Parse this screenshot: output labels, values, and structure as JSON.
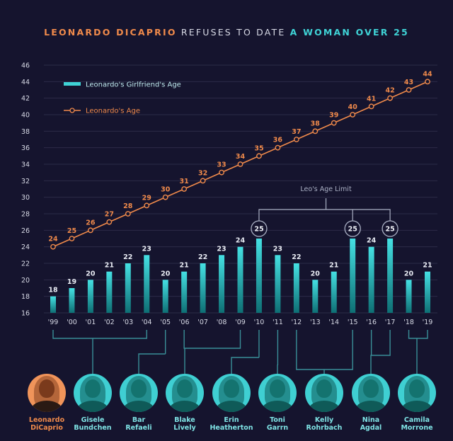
{
  "headline": {
    "part1": "LEONARDO DICAPRIO",
    "part2": " REFUSES TO DATE ",
    "part3": "A WOMAN OVER 25"
  },
  "colors": {
    "background": "#15142e",
    "orange": "#f08a4b",
    "teal": "#3fd3d6",
    "grid": "#2c2b48",
    "axis_text": "#d8dae6"
  },
  "chart_data": {
    "type": "bar",
    "categories": [
      "'99",
      "'00",
      "'01",
      "'02",
      "'03",
      "'04",
      "'05",
      "'06",
      "'07",
      "'08",
      "'09",
      "'10",
      "'11",
      "'12",
      "'13",
      "'14",
      "'15",
      "'16",
      "'17",
      "'18",
      "'19"
    ],
    "ylim": [
      16,
      46
    ],
    "yticks": [
      16,
      18,
      20,
      22,
      24,
      26,
      28,
      30,
      32,
      34,
      36,
      38,
      40,
      42,
      44,
      46
    ],
    "grid": true,
    "legend_position": "top-left",
    "series": [
      {
        "name": "Leonardo's Girlfriend's Age",
        "type": "bar",
        "values": [
          18,
          19,
          20,
          21,
          22,
          23,
          20,
          21,
          22,
          23,
          24,
          25,
          23,
          22,
          20,
          21,
          25,
          24,
          25,
          20,
          21
        ]
      },
      {
        "name": "Leonardo's Age",
        "type": "line",
        "values": [
          24,
          25,
          26,
          27,
          28,
          29,
          30,
          31,
          32,
          33,
          34,
          35,
          36,
          37,
          38,
          39,
          40,
          41,
          42,
          43,
          44
        ]
      }
    ],
    "annotation": "Leo's Age Limit",
    "highlighted_categories": [
      "'10",
      "'15",
      "'17"
    ]
  },
  "people": [
    {
      "name": "Leonardo\nDiCaprio",
      "leo": true
    },
    {
      "name": "Gisele\nBundchen"
    },
    {
      "name": "Bar\nRefaeli"
    },
    {
      "name": "Blake\nLively"
    },
    {
      "name": "Erin\nHeatherton"
    },
    {
      "name": "Toni\nGarrn"
    },
    {
      "name": "Kelly\nRohrbach"
    },
    {
      "name": "Nina\nAgdal"
    },
    {
      "name": "Camila\nMorrone"
    }
  ]
}
